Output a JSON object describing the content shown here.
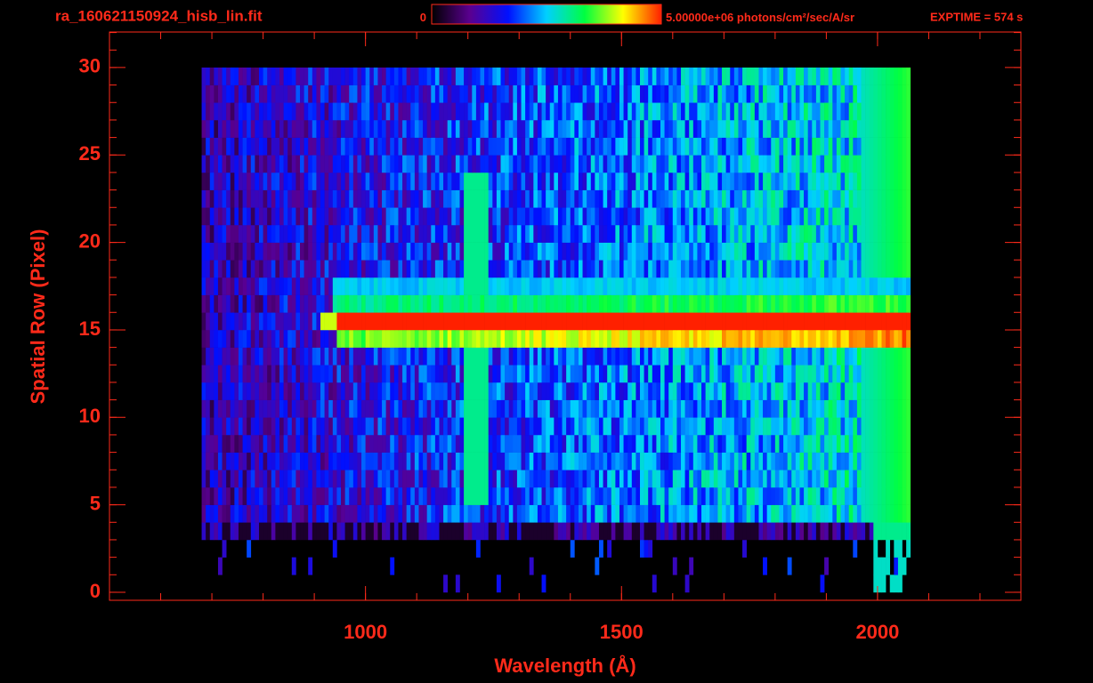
{
  "chart_data": {
    "type": "heatmap",
    "title": "ra_160621150924_hisb_lin.fit",
    "annotation": "EXPTIME = 574 s",
    "xlabel": "Wavelength (Å)",
    "ylabel": "Spatial Row (Pixel)",
    "xlim": [
      500,
      2280
    ],
    "ylim": [
      -0.46,
      32.03
    ],
    "xticks": [
      1000,
      1500,
      2000
    ],
    "xminorticks": [
      600,
      700,
      800,
      900,
      1000,
      1100,
      1200,
      1300,
      1400,
      1500,
      1600,
      1700,
      1800,
      1900,
      2000,
      2100,
      2200
    ],
    "yticks": [
      0,
      5,
      10,
      15,
      20,
      25,
      30
    ],
    "yminorticks": [
      0,
      1,
      2,
      3,
      4,
      5,
      6,
      7,
      8,
      9,
      10,
      11,
      12,
      13,
      14,
      15,
      16,
      17,
      18,
      19,
      20,
      21,
      22,
      23,
      24,
      25,
      26,
      27,
      28,
      29,
      30,
      31,
      32
    ],
    "colormap": [
      "#000000",
      "#5a0090",
      "#0010ff",
      "#00d0ff",
      "#00ff40",
      "#ffff00",
      "#ff2000"
    ],
    "colorbar": {
      "ticks": [
        0,
        {
          "value": 5000000,
          "label": "5.00000e+06"
        }
      ],
      "unit": "photons/cm²/sec/A/sr"
    },
    "axis_color": "#ff2a1a",
    "background": "#000000"
  }
}
